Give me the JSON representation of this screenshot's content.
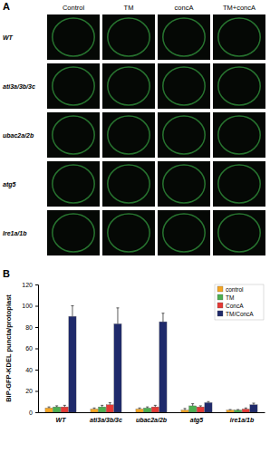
{
  "figure": {
    "panel_a": "A",
    "columns": [
      "Control",
      "TM",
      "concA",
      "TM+concA"
    ],
    "rows": [
      "WT",
      "ati3a/3b/3c",
      "ubac2a/2b",
      "atg5",
      "Ire1a/1b"
    ]
  },
  "chart_data": {
    "type": "bar",
    "panel": "B",
    "y_label": "BiP-GFP-KDEL puncta/protoplast",
    "categories": [
      "WT",
      "ati3a/3b/3c",
      "ubac2a/2b",
      "atg5",
      "ire1a/1b"
    ],
    "series": [
      {
        "name": "control",
        "color": "#f5a623",
        "values": [
          4,
          3,
          3,
          2,
          2
        ],
        "errors": [
          1,
          1,
          1,
          1.5,
          0.5
        ]
      },
      {
        "name": "TM",
        "color": "#4caf50",
        "values": [
          5,
          5,
          4,
          6,
          2
        ],
        "errors": [
          1,
          1.5,
          1,
          2,
          0.5
        ]
      },
      {
        "name": "ConcA",
        "color": "#e53935",
        "values": [
          5,
          7,
          5,
          5,
          3
        ],
        "errors": [
          1.5,
          2,
          1.5,
          1,
          1
        ]
      },
      {
        "name": "TM/ConcA",
        "color": "#1f2a6b",
        "values": [
          90,
          83,
          85,
          9,
          7
        ],
        "errors": [
          10,
          15,
          8,
          1,
          1.5
        ]
      }
    ],
    "ylim": [
      0,
      120
    ],
    "yticks": [
      0,
      20,
      40,
      60,
      80,
      100,
      120
    ],
    "legend": "top-right",
    "grid": false
  }
}
